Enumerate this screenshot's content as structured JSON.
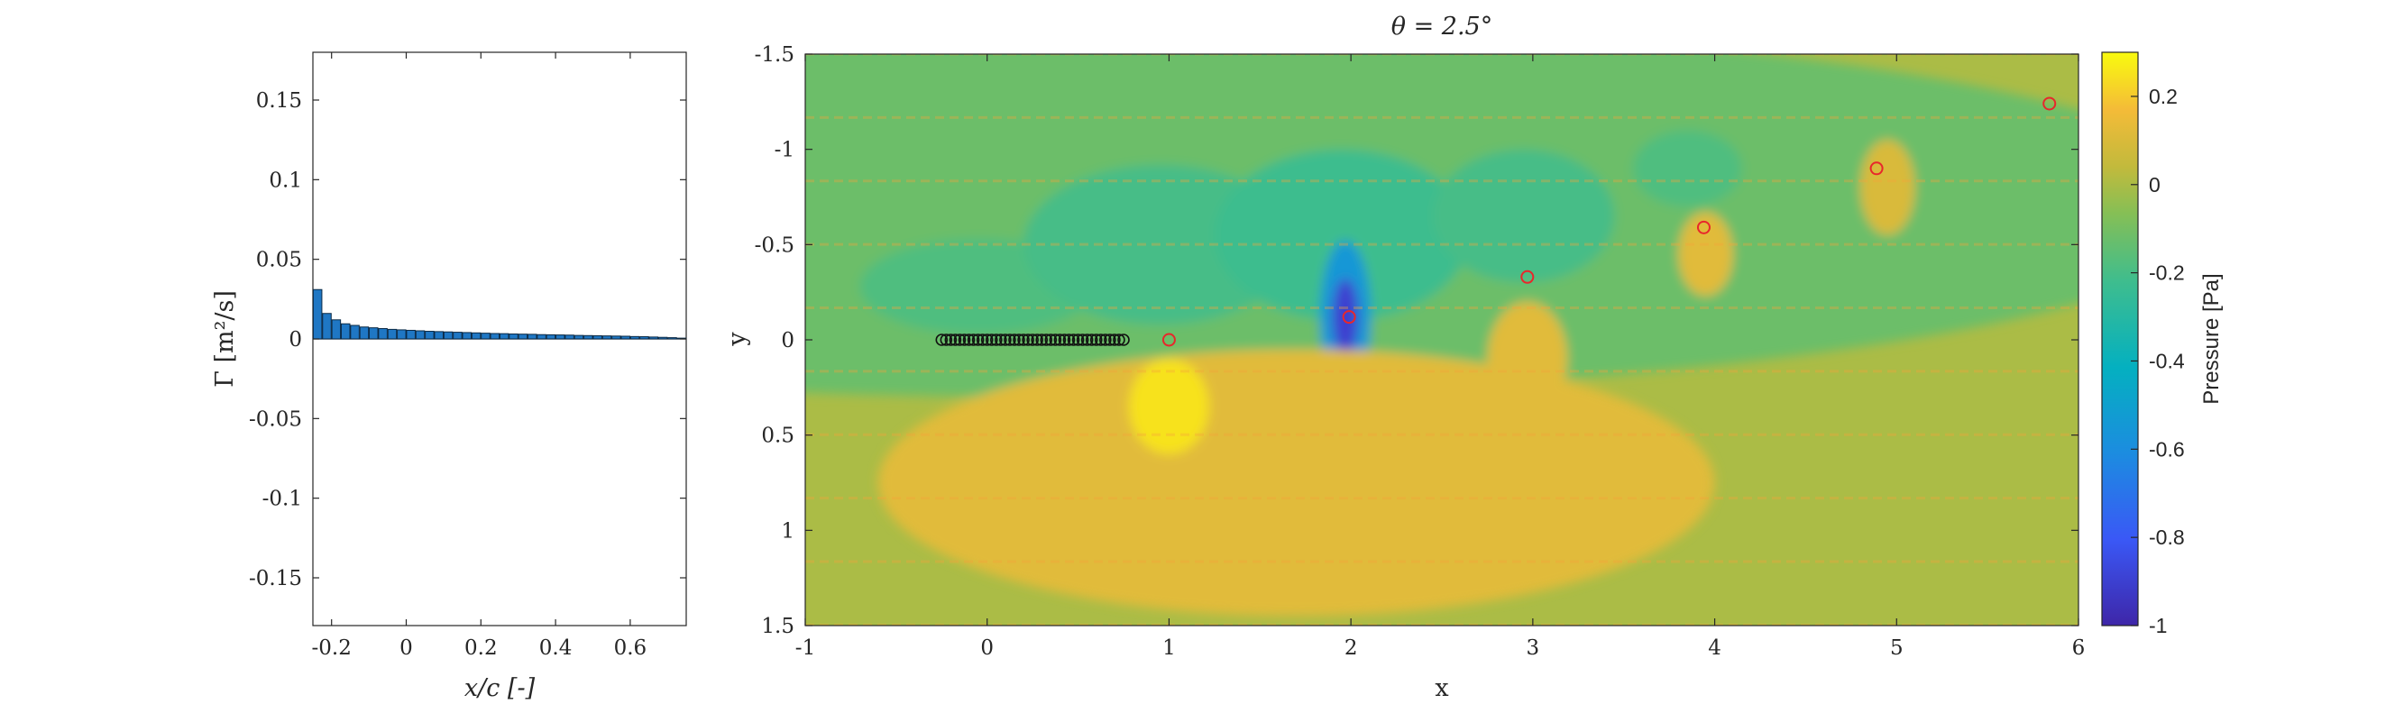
{
  "figure": {
    "colors": {
      "background": "#ffffff",
      "axis": "#262626",
      "bar_fill": "#1f77c4",
      "bar_edge": "#0b2a46",
      "vortex_marker": "#e8272b",
      "panel_marker": "#111111"
    }
  },
  "chart_data": [
    {
      "type": "bar",
      "title": "",
      "xlabel": "x/c [-]",
      "ylabel": "Γ [m²/s]",
      "xlim": [
        -0.25,
        0.75
      ],
      "ylim": [
        -0.18,
        0.18
      ],
      "xticks": [
        -0.2,
        0,
        0.2,
        0.4,
        0.6
      ],
      "xtick_labels": [
        "-0.2",
        "0",
        "0.2",
        "0.4",
        "0.6"
      ],
      "yticks": [
        0.15,
        0.1,
        0.05,
        0,
        -0.05,
        -0.1,
        -0.15
      ],
      "ytick_labels": [
        "0.15",
        "0.1",
        "0.05",
        "0",
        "-0.05",
        "-0.1",
        "-0.15"
      ],
      "grid": false,
      "x": [
        -0.2375,
        -0.2125,
        -0.1875,
        -0.1625,
        -0.1375,
        -0.1125,
        -0.0875,
        -0.0625,
        -0.0375,
        -0.0125,
        0.0125,
        0.0375,
        0.0625,
        0.0875,
        0.1125,
        0.1375,
        0.1625,
        0.1875,
        0.2125,
        0.2375,
        0.2625,
        0.2875,
        0.3125,
        0.3375,
        0.3625,
        0.3875,
        0.4125,
        0.4375,
        0.4625,
        0.4875,
        0.5125,
        0.5375,
        0.5625,
        0.5875,
        0.6125,
        0.6375,
        0.6625,
        0.6875,
        0.7125,
        0.7375
      ],
      "values": [
        0.031,
        0.016,
        0.012,
        0.0095,
        0.0085,
        0.0075,
        0.007,
        0.0065,
        0.006,
        0.0057,
        0.0054,
        0.0051,
        0.0048,
        0.0046,
        0.0044,
        0.0042,
        0.004,
        0.0038,
        0.0036,
        0.0034,
        0.0033,
        0.0031,
        0.003,
        0.0029,
        0.0027,
        0.0026,
        0.0025,
        0.0024,
        0.0022,
        0.0021,
        0.002,
        0.0019,
        0.0018,
        0.0017,
        0.0015,
        0.0014,
        0.0012,
        0.001,
        0.0008,
        0.0005
      ]
    },
    {
      "type": "heatmap",
      "title": "θ = 2.5°",
      "xlabel": "x",
      "ylabel": "y",
      "xlim": [
        -1,
        6
      ],
      "ylim": [
        -1.5,
        1.5
      ],
      "y_reversed": true,
      "xticks": [
        -1,
        0,
        1,
        2,
        3,
        4,
        5,
        6
      ],
      "xtick_labels": [
        "-1",
        "0",
        "1",
        "2",
        "3",
        "4",
        "5",
        "6"
      ],
      "yticks": [
        -1.5,
        -1,
        -0.5,
        0,
        0.5,
        1,
        1.5
      ],
      "ytick_labels": [
        "-1.5",
        "-1",
        "-0.5",
        "0",
        "0.5",
        "1",
        "1.5"
      ],
      "colorbar": {
        "label": "Pressure [Pa]",
        "range": [
          -1,
          0.3
        ],
        "ticks": [
          0.2,
          0,
          -0.2,
          -0.4,
          -0.6,
          -0.8,
          -1
        ],
        "tick_labels": [
          "0.2",
          "0",
          "-0.2",
          "-0.4",
          "-0.6",
          "-0.8",
          "-1"
        ],
        "colormap": "parula"
      },
      "background_pressure": 0.0,
      "regions": [
        {
          "kind": "low",
          "cx": 0.4,
          "cy": -0.7,
          "rx": 6.5,
          "ry": 1.0,
          "value": -0.12
        },
        {
          "kind": "low",
          "cx": -0.05,
          "cy": -0.28,
          "rx": 0.65,
          "ry": 0.25,
          "value": -0.18
        },
        {
          "kind": "low",
          "cx": 0.95,
          "cy": -0.5,
          "rx": 0.75,
          "ry": 0.42,
          "value": -0.2
        },
        {
          "kind": "low",
          "cx": 1.95,
          "cy": -0.55,
          "rx": 0.7,
          "ry": 0.45,
          "value": -0.22
        },
        {
          "kind": "low",
          "cx": 2.95,
          "cy": -0.65,
          "rx": 0.5,
          "ry": 0.35,
          "value": -0.2
        },
        {
          "kind": "low",
          "cx": 3.85,
          "cy": -0.9,
          "rx": 0.3,
          "ry": 0.2,
          "value": -0.18
        },
        {
          "kind": "low",
          "cx": 1.97,
          "cy": -0.12,
          "rx": 0.14,
          "ry": 0.4,
          "value": -0.55
        },
        {
          "kind": "low",
          "cx": 1.97,
          "cy": -0.12,
          "rx": 0.07,
          "ry": 0.2,
          "value": -0.9
        },
        {
          "kind": "high",
          "cx": 1.7,
          "cy": 0.75,
          "rx": 2.3,
          "ry": 0.7,
          "value": 0.12
        },
        {
          "kind": "high",
          "cx": 1.0,
          "cy": 0.35,
          "rx": 0.22,
          "ry": 0.25,
          "value": 0.25
        },
        {
          "kind": "high",
          "cx": 2.97,
          "cy": 0.1,
          "rx": 0.22,
          "ry": 0.3,
          "value": 0.12
        },
        {
          "kind": "high",
          "cx": 3.95,
          "cy": -0.45,
          "rx": 0.15,
          "ry": 0.22,
          "value": 0.12
        },
        {
          "kind": "high",
          "cx": 4.95,
          "cy": -0.8,
          "rx": 0.15,
          "ry": 0.25,
          "value": 0.1
        }
      ],
      "panel_points": {
        "x": [
          -0.25,
          -0.225,
          -0.2,
          -0.175,
          -0.15,
          -0.125,
          -0.1,
          -0.075,
          -0.05,
          -0.025,
          0,
          0.025,
          0.05,
          0.075,
          0.1,
          0.125,
          0.15,
          0.175,
          0.2,
          0.225,
          0.25,
          0.275,
          0.3,
          0.325,
          0.35,
          0.375,
          0.4,
          0.425,
          0.45,
          0.475,
          0.5,
          0.525,
          0.55,
          0.575,
          0.6,
          0.625,
          0.65,
          0.675,
          0.7,
          0.725,
          0.75
        ],
        "y": 0
      },
      "wake_vortices": {
        "x": [
          1.0,
          1.99,
          2.97,
          3.94,
          4.89,
          5.84
        ],
        "y": [
          0.0,
          -0.12,
          -0.33,
          -0.59,
          -0.9,
          -1.24
        ]
      }
    }
  ]
}
